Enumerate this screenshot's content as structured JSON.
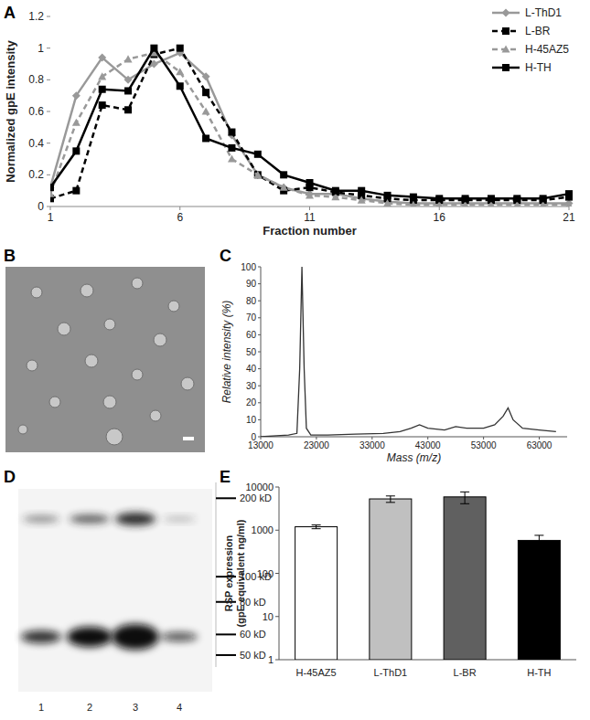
{
  "chart_data": [
    {
      "type": "line",
      "title": "A",
      "x": [
        1,
        2,
        3,
        4,
        5,
        6,
        7,
        8,
        9,
        10,
        11,
        12,
        13,
        14,
        15,
        16,
        17,
        18,
        19,
        20,
        21
      ],
      "xlim": [
        1,
        21
      ],
      "xticks": [
        1,
        6,
        11,
        16,
        21
      ],
      "ylim": [
        0,
        1.2
      ],
      "yticks": [
        0,
        0.2,
        0.4,
        0.6,
        0.8,
        1,
        1.2
      ],
      "x_label": "Fraction number",
      "y_label": "Normalized gpE intensity",
      "legend": "upper right",
      "series": [
        {
          "name": "L-ThD1",
          "color": "#999999",
          "marker": "diamond",
          "line_style": "solid",
          "values": [
            0.12,
            0.7,
            0.94,
            0.8,
            0.9,
            0.97,
            0.82,
            0.45,
            0.2,
            0.12,
            0.08,
            0.08,
            0.05,
            0.03,
            0.02,
            0.02,
            0.02,
            0.02,
            0.02,
            0.02,
            0.02
          ]
        },
        {
          "name": "L-BR",
          "color": "#000000",
          "marker": "square",
          "line_style": "dashed",
          "values": [
            0.05,
            0.1,
            0.64,
            0.61,
            0.96,
            1.0,
            0.72,
            0.47,
            0.2,
            0.1,
            0.12,
            0.09,
            0.07,
            0.05,
            0.04,
            0.04,
            0.04,
            0.04,
            0.04,
            0.04,
            0.06
          ]
        },
        {
          "name": "H-45AZ5",
          "color": "#999999",
          "marker": "triangle",
          "line_style": "dashed",
          "values": [
            0.08,
            0.53,
            0.82,
            0.93,
            0.97,
            0.85,
            0.6,
            0.3,
            0.2,
            0.12,
            0.07,
            0.06,
            0.04,
            0.02,
            0.01,
            0.01,
            0.01,
            0.01,
            0.01,
            0.01,
            0.01
          ]
        },
        {
          "name": "H-TH",
          "color": "#000000",
          "marker": "square",
          "line_style": "solid",
          "values": [
            0.12,
            0.35,
            0.74,
            0.73,
            1.0,
            0.76,
            0.43,
            0.37,
            0.33,
            0.2,
            0.15,
            0.1,
            0.1,
            0.07,
            0.06,
            0.05,
            0.05,
            0.05,
            0.05,
            0.05,
            0.08
          ]
        }
      ]
    },
    {
      "type": "image",
      "title": "B"
    },
    {
      "type": "line",
      "title": "C",
      "x": [
        13000,
        18000,
        19500,
        20000,
        20400,
        20800,
        21200,
        22000,
        25000,
        30000,
        35000,
        38000,
        40000,
        41500,
        43000,
        46000,
        48000,
        50000,
        53000,
        55000,
        56500,
        57400,
        58300,
        60000,
        63000,
        66000
      ],
      "values": [
        0,
        1,
        2,
        40,
        100,
        40,
        5,
        1,
        1,
        1.5,
        2,
        3,
        5,
        7,
        5,
        4,
        6,
        5,
        5,
        7,
        12,
        17,
        10,
        5,
        4,
        3
      ],
      "color": "#333333",
      "xlim": [
        13000,
        68000
      ],
      "xticks": [
        13000,
        23000,
        33000,
        43000,
        53000,
        63000
      ],
      "ylim": [
        0,
        100
      ],
      "yticks": [
        0,
        10,
        20,
        30,
        40,
        50,
        60,
        70,
        80,
        90,
        100
      ],
      "x_label": "Mass (m/z)",
      "y_label": "Relative intensity (%)"
    },
    {
      "type": "blot",
      "title": "D",
      "categories": [
        "1",
        "2",
        "3",
        "4"
      ],
      "log": "y",
      "ylim": [
        45,
        230
      ],
      "yticks": [
        {
          "value": 200,
          "label": "200 kD"
        },
        {
          "value": 100,
          "label": "100 kD"
        },
        {
          "value": 80,
          "label": "80 kD"
        },
        {
          "value": 60,
          "label": "60 kD"
        },
        {
          "value": 50,
          "label": "50 kD"
        }
      ]
    },
    {
      "type": "bar",
      "title": "E",
      "categories": [
        "H-45AZ5",
        "L-ThD1",
        "L-BR",
        "H-TH"
      ],
      "values": [
        1200,
        5300,
        5900,
        580
      ],
      "errors": [
        120,
        900,
        1800,
        180
      ],
      "colors": [
        "#ffffff",
        "#c0c0c0",
        "#606060",
        "#000000"
      ],
      "log": "y",
      "ylim": [
        1,
        10000
      ],
      "yticks": [
        1,
        10,
        100,
        1000,
        10000
      ],
      "y_label": [
        "RSP expression",
        "(gpE equivalent ng/ml)"
      ]
    }
  ]
}
